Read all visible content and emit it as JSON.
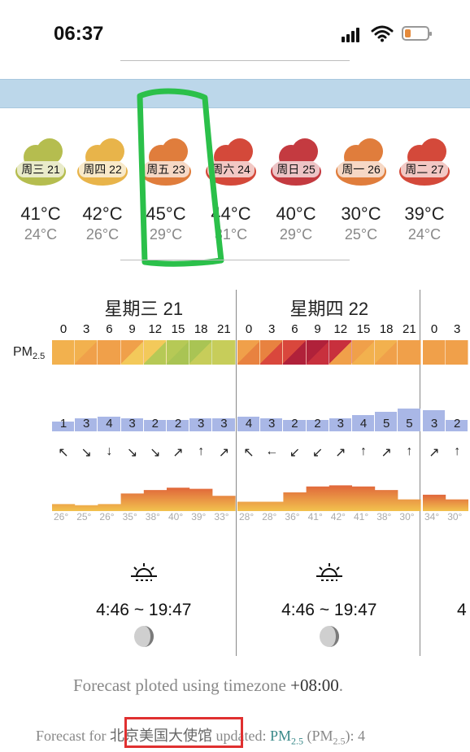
{
  "status_bar": {
    "time": "06:37"
  },
  "days": [
    {
      "label": "周三 21",
      "high": "41°C",
      "low": "24°C",
      "color": "#b5bd4f"
    },
    {
      "label": "周四 22",
      "high": "42°C",
      "low": "26°C",
      "color": "#e8b44a"
    },
    {
      "label": "周五 23",
      "high": "45°C",
      "low": "29°C",
      "color": "#e07d3c"
    },
    {
      "label": "周六 24",
      "high": "44°C",
      "low": "31°C",
      "color": "#d4493a"
    },
    {
      "label": "周日 25",
      "high": "40°C",
      "low": "29°C",
      "color": "#c43a40"
    },
    {
      "label": "周一 26",
      "high": "30°C",
      "low": "25°C",
      "color": "#e07d3c"
    },
    {
      "label": "周二 27",
      "high": "39°C",
      "low": "24°C",
      "color": "#d4493a"
    }
  ],
  "detail": {
    "pm_label": "PM",
    "pm_sub": "2.5",
    "columns": [
      {
        "title": "星期三 21",
        "hours": [
          "0",
          "3",
          "6",
          "9",
          "12",
          "15",
          "18",
          "21"
        ],
        "aqi_numbers": [
          "1",
          "3",
          "4",
          "3",
          "2",
          "2",
          "3",
          "3"
        ],
        "arrows": [
          "↖",
          "↘",
          "↓",
          "↘",
          "↘",
          "↗",
          "↑",
          "↗"
        ],
        "temps": [
          "26°",
          "25°",
          "26°",
          "35°",
          "38°",
          "40°",
          "39°",
          "33°"
        ],
        "sunrise_sunset": "4:46 ~ 19:47",
        "pm_colors": [
          "#f2b14e",
          "#f2b14e",
          "#f0a04a",
          "#f0a04a",
          "#f3c95a",
          "#b6c956",
          "#a9c454",
          "#c7cd5a"
        ]
      },
      {
        "title": "星期四 22",
        "hours": [
          "0",
          "3",
          "6",
          "9",
          "12",
          "15",
          "18",
          "21"
        ],
        "aqi_numbers": [
          "4",
          "3",
          "2",
          "2",
          "3",
          "4",
          "5",
          "5"
        ],
        "arrows": [
          "↖",
          "←",
          "↙",
          "↙",
          "↗",
          "↑",
          "↗",
          "↑"
        ],
        "temps": [
          "28°",
          "28°",
          "36°",
          "41°",
          "42°",
          "41°",
          "38°",
          "30°"
        ],
        "sunrise_sunset": "4:46 ~ 19:47",
        "pm_colors": [
          "#f0a04a",
          "#e88240",
          "#d9473c",
          "#b0213a",
          "#c8303d",
          "#f0a04a",
          "#f2b14e",
          "#f0a04a"
        ]
      },
      {
        "title": "",
        "hours": [
          "0",
          "3"
        ],
        "aqi_numbers": [
          "3",
          "2"
        ],
        "arrows": [
          "↗",
          "↑"
        ],
        "temps": [
          "34°",
          "30°"
        ],
        "sunrise_sunset": "4",
        "pm_colors": [
          "#f0a04a",
          "#f0a04a"
        ]
      }
    ]
  },
  "footer": {
    "timezone_text": "Forecast ploted using timezone",
    "timezone_value": "+08:00",
    "forecast_for": "Forecast for",
    "station": "北京美国大使馆",
    "updated": "updated:",
    "pm": "PM",
    "pm_sub": "2.5",
    "pm_paren": "(PM",
    "pm_paren_sub": "2.5",
    "tail": "): 4"
  }
}
